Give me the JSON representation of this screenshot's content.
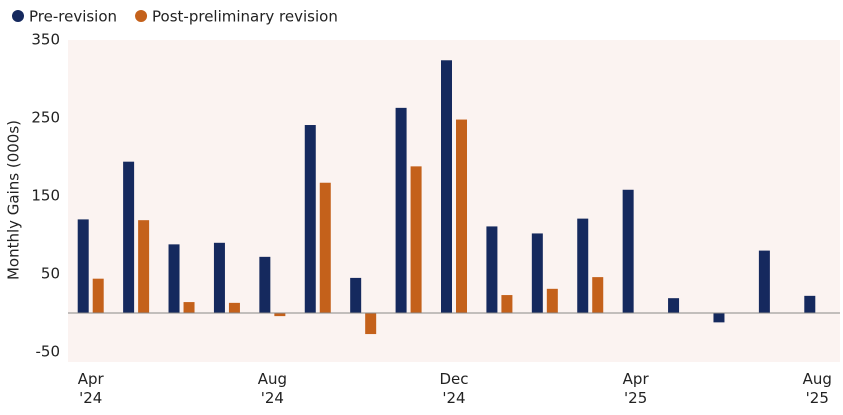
{
  "chart_data": {
    "type": "bar",
    "y_label": "Monthly Gains (000s)",
    "categories": [
      "Apr '24",
      null,
      null,
      null,
      "Aug '24",
      null,
      null,
      null,
      "Dec '24",
      null,
      null,
      null,
      "Apr '25",
      null,
      null,
      null,
      "Aug '25"
    ],
    "series": [
      {
        "name": "Pre-revision",
        "color": "#15295e",
        "values": [
          120,
          194,
          88,
          90,
          72,
          241,
          45,
          263,
          324,
          111,
          102,
          121,
          158,
          19,
          -12,
          80,
          22
        ]
      },
      {
        "name": "Post-preliminary revision",
        "color": "#c4611b",
        "values": [
          44,
          119,
          14,
          13,
          -4,
          167,
          -27,
          188,
          248,
          23,
          31,
          46,
          null,
          null,
          null,
          null,
          null
        ]
      }
    ],
    "ylim": [
      -50,
      350
    ],
    "yticks": [
      -50,
      50,
      150,
      250,
      350
    ],
    "legend": "top-left"
  }
}
